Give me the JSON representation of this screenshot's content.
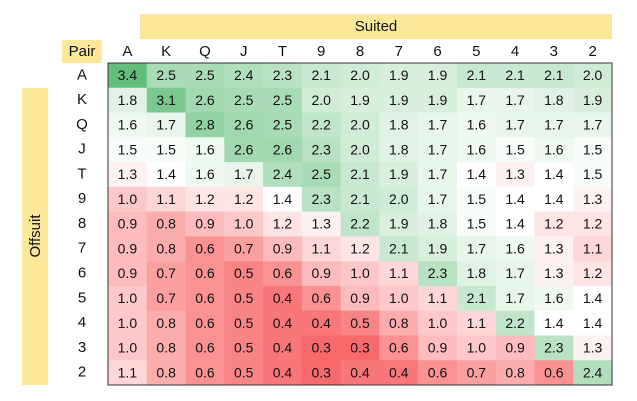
{
  "chart_data": {
    "type": "heatmap",
    "column_group_label": "Suited",
    "row_group_label": "Offsuit",
    "corner_label": "Pair",
    "x_categories": [
      "A",
      "K",
      "Q",
      "J",
      "T",
      "9",
      "8",
      "7",
      "6",
      "5",
      "4",
      "3",
      "2"
    ],
    "y_categories": [
      "A",
      "K",
      "Q",
      "J",
      "T",
      "9",
      "8",
      "7",
      "6",
      "5",
      "4",
      "3",
      "2"
    ],
    "values": [
      [
        3.4,
        2.5,
        2.5,
        2.4,
        2.3,
        2.1,
        2.0,
        1.9,
        1.9,
        2.1,
        2.1,
        2.1,
        2.0
      ],
      [
        1.8,
        3.1,
        2.6,
        2.5,
        2.5,
        2.0,
        1.9,
        1.9,
        1.9,
        1.7,
        1.7,
        1.8,
        1.9
      ],
      [
        1.6,
        1.7,
        2.8,
        2.6,
        2.5,
        2.2,
        2.0,
        1.8,
        1.7,
        1.6,
        1.7,
        1.7,
        1.7
      ],
      [
        1.5,
        1.5,
        1.6,
        2.6,
        2.6,
        2.3,
        2.0,
        1.8,
        1.7,
        1.6,
        1.5,
        1.6,
        1.5
      ],
      [
        1.3,
        1.4,
        1.6,
        1.7,
        2.4,
        2.5,
        2.1,
        1.9,
        1.7,
        1.4,
        1.3,
        1.4,
        1.5
      ],
      [
        1.0,
        1.1,
        1.2,
        1.2,
        1.4,
        2.3,
        2.1,
        2.0,
        1.7,
        1.5,
        1.4,
        1.4,
        1.3
      ],
      [
        0.9,
        0.8,
        0.9,
        1.0,
        1.2,
        1.3,
        2.2,
        1.9,
        1.8,
        1.5,
        1.4,
        1.2,
        1.2
      ],
      [
        0.9,
        0.8,
        0.6,
        0.7,
        0.9,
        1.1,
        1.2,
        2.1,
        1.9,
        1.7,
        1.6,
        1.3,
        1.1
      ],
      [
        0.9,
        0.7,
        0.6,
        0.5,
        0.6,
        0.9,
        1.0,
        1.1,
        2.3,
        1.8,
        1.7,
        1.3,
        1.2
      ],
      [
        1.0,
        0.7,
        0.6,
        0.5,
        0.4,
        0.6,
        0.9,
        1.0,
        1.1,
        2.1,
        1.7,
        1.6,
        1.4
      ],
      [
        1.0,
        0.8,
        0.6,
        0.5,
        0.4,
        0.4,
        0.5,
        0.8,
        1.0,
        1.1,
        2.2,
        1.4,
        1.4
      ],
      [
        1.0,
        0.8,
        0.6,
        0.5,
        0.4,
        0.3,
        0.3,
        0.6,
        0.9,
        1.0,
        0.9,
        2.3,
        1.3
      ],
      [
        1.1,
        0.8,
        0.6,
        0.5,
        0.4,
        0.3,
        0.4,
        0.4,
        0.6,
        0.7,
        0.8,
        0.6,
        2.4
      ]
    ],
    "value_labels": [
      [
        "3.4",
        "2.5",
        "2.5",
        "2.4",
        "2.3",
        "2.1",
        "2.0",
        "1.9",
        "1.9",
        "2.1",
        "2.1",
        "2.1",
        "2.0"
      ],
      [
        "1.8",
        "3.1",
        "2.6",
        "2.5",
        "2.5",
        "2.0",
        "1.9",
        "1.9",
        "1.9",
        "1.7",
        "1.7",
        "1.8",
        "1.9"
      ],
      [
        "1.6",
        "1.7",
        "2.8",
        "2.6",
        "2.5",
        "2.2",
        "2.0",
        "1.8",
        "1.7",
        "1.6",
        "1.7",
        "1.7",
        "1.7"
      ],
      [
        "1.5",
        "1.5",
        "1.6",
        "2.6",
        "2.6",
        "2.3",
        "2.0",
        "1.8",
        "1.7",
        "1.6",
        "1.5",
        "1.6",
        "1.5"
      ],
      [
        "1.3",
        "1.4",
        "1.6",
        "1.7",
        "2.4",
        "2.5",
        "2.1",
        "1.9",
        "1.7",
        "1.4",
        "1.3",
        "1.4",
        "1.5"
      ],
      [
        "1.0",
        "1.1",
        "1.2",
        "1.2",
        "1.4",
        "2.3",
        "2.1",
        "2.0",
        "1.7",
        "1.5",
        "1.4",
        "1.4",
        "1.3"
      ],
      [
        "0.9",
        "0.8",
        "0.9",
        "1.0",
        "1.2",
        "1.3",
        "2.2",
        "1.9",
        "1.8",
        "1.5",
        "1.4",
        "1.2",
        "1.2"
      ],
      [
        "0.9",
        "0.8",
        "0.6",
        "0.7",
        "0.9",
        "1.1",
        "1.2",
        "2.1",
        "1.9",
        "1.7",
        "1.6",
        "1.3",
        "1.1"
      ],
      [
        "0.9",
        "0.7",
        "0.6",
        "0.5",
        "0.6",
        "0.9",
        "1.0",
        "1.1",
        "2.3",
        "1.8",
        "1.7",
        "1.3",
        "1.2"
      ],
      [
        "1.0",
        "0.7",
        "0.6",
        "0.5",
        "0.4",
        "0.6",
        "0.9",
        "1.0",
        "1.1",
        "2.1",
        "1.7",
        "1.6",
        "1.4"
      ],
      [
        "1.0",
        "0.8",
        "0.6",
        "0.5",
        "0.4",
        "0.4",
        "0.5",
        "0.8",
        "1.0",
        "1.1",
        "2.2",
        "1.4",
        "1.4"
      ],
      [
        "1.0",
        "0.8",
        "0.6",
        "0.5",
        "0.4",
        "0.3",
        "0.3",
        "0.6",
        "0.9",
        "1.0",
        "0.9",
        "2.3",
        "1.3"
      ],
      [
        "1.1",
        "0.8",
        "0.6",
        "0.5",
        "0.4",
        "0.3",
        "0.4",
        "0.4",
        "0.6",
        "0.7",
        "0.8",
        "0.6",
        "2.4"
      ]
    ],
    "color_scale": {
      "low": "#f8696b",
      "mid": "#ffffff",
      "high": "#63be7b"
    }
  }
}
